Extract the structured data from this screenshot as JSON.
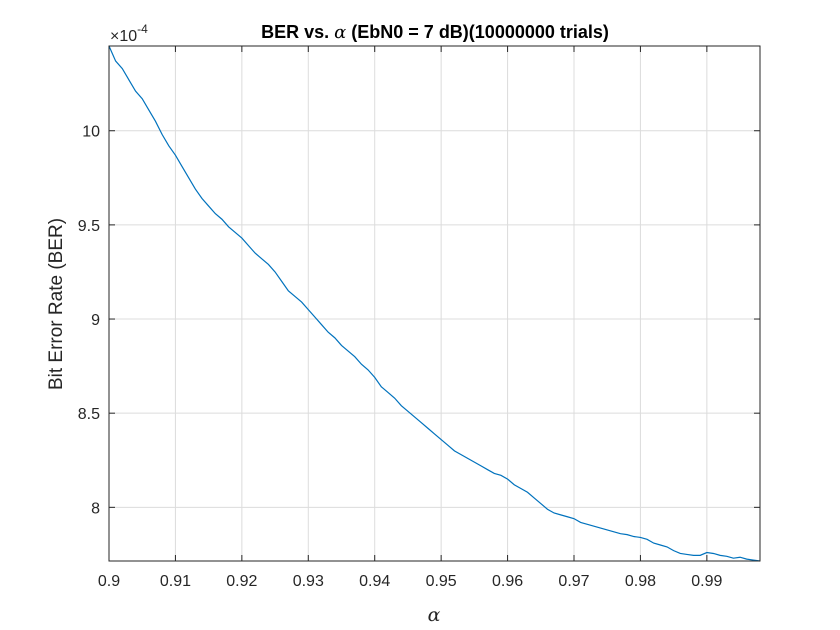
{
  "chart_data": {
    "type": "line",
    "title_prefix": "BER vs. ",
    "title_symbol": "α",
    "title_suffix": " (EbN0 = 7 dB)(10000000 trials)",
    "xlabel": "α",
    "ylabel": "Bit Error Rate (BER)",
    "exponent_text": "×10",
    "exponent_power": "-4",
    "xlim": [
      0.9,
      0.998
    ],
    "ylim": [
      7.715,
      10.45
    ],
    "xticks": [
      0.9,
      0.91,
      0.92,
      0.93,
      0.94,
      0.95,
      0.96,
      0.97,
      0.98,
      0.99
    ],
    "xtick_labels": [
      "0.9",
      "0.91",
      "0.92",
      "0.93",
      "0.94",
      "0.95",
      "0.96",
      "0.97",
      "0.98",
      "0.99"
    ],
    "yticks": [
      8,
      8.5,
      9,
      9.5,
      10
    ],
    "ytick_labels": [
      "8",
      "8.5",
      "9",
      "9.5",
      "10"
    ],
    "grid": true,
    "line_color": "#0072BD",
    "series": [
      {
        "name": "",
        "x": [
          0.9,
          0.901,
          0.902,
          0.903,
          0.904,
          0.905,
          0.906,
          0.907,
          0.908,
          0.909,
          0.91,
          0.911,
          0.912,
          0.913,
          0.914,
          0.915,
          0.916,
          0.917,
          0.918,
          0.919,
          0.92,
          0.921,
          0.922,
          0.923,
          0.924,
          0.925,
          0.926,
          0.927,
          0.928,
          0.929,
          0.93,
          0.931,
          0.932,
          0.933,
          0.934,
          0.935,
          0.936,
          0.937,
          0.938,
          0.939,
          0.94,
          0.941,
          0.942,
          0.943,
          0.944,
          0.945,
          0.946,
          0.947,
          0.948,
          0.949,
          0.95,
          0.951,
          0.952,
          0.953,
          0.954,
          0.955,
          0.956,
          0.957,
          0.958,
          0.959,
          0.96,
          0.961,
          0.962,
          0.963,
          0.964,
          0.965,
          0.966,
          0.967,
          0.968,
          0.969,
          0.97,
          0.971,
          0.972,
          0.973,
          0.974,
          0.975,
          0.976,
          0.977,
          0.978,
          0.979,
          0.98,
          0.981,
          0.982,
          0.983,
          0.984,
          0.985,
          0.986,
          0.987,
          0.988,
          0.989,
          0.99,
          0.991,
          0.992,
          0.993,
          0.994,
          0.995,
          0.996,
          0.997,
          0.998
        ],
        "y": [
          10.45,
          10.37,
          10.33,
          10.27,
          10.21,
          10.17,
          10.11,
          10.05,
          9.98,
          9.92,
          9.87,
          9.81,
          9.75,
          9.69,
          9.64,
          9.6,
          9.56,
          9.53,
          9.49,
          9.46,
          9.43,
          9.39,
          9.35,
          9.32,
          9.29,
          9.25,
          9.2,
          9.15,
          9.12,
          9.09,
          9.05,
          9.01,
          8.97,
          8.93,
          8.9,
          8.86,
          8.83,
          8.8,
          8.76,
          8.73,
          8.69,
          8.64,
          8.61,
          8.58,
          8.54,
          8.51,
          8.48,
          8.45,
          8.42,
          8.39,
          8.36,
          8.33,
          8.3,
          8.28,
          8.26,
          8.24,
          8.22,
          8.2,
          8.18,
          8.17,
          8.15,
          8.12,
          8.1,
          8.08,
          8.05,
          8.02,
          7.99,
          7.97,
          7.96,
          7.95,
          7.94,
          7.92,
          7.91,
          7.9,
          7.89,
          7.88,
          7.87,
          7.86,
          7.855,
          7.845,
          7.84,
          7.83,
          7.81,
          7.8,
          7.79,
          7.77,
          7.755,
          7.75,
          7.745,
          7.745,
          7.76,
          7.755,
          7.745,
          7.74,
          7.73,
          7.735,
          7.725,
          7.72,
          7.715
        ]
      }
    ]
  }
}
